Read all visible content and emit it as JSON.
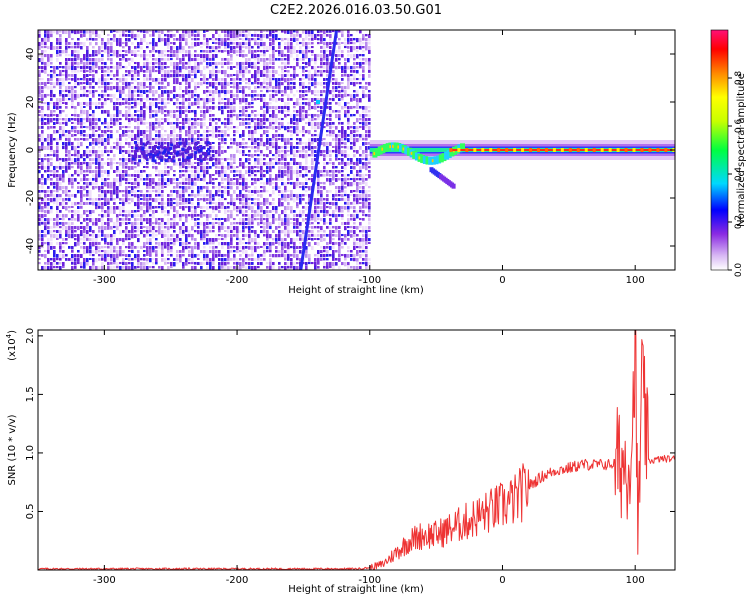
{
  "title": "C2E2.2026.016.03.50.G01",
  "colors": {
    "snr_line": "#ee3333",
    "axis": "#000000"
  },
  "chart_data": [
    {
      "type": "heatmap",
      "xlabel": "Height of straight line (km)",
      "ylabel": "Frequency (Hz)",
      "xlim": [
        -350,
        130
      ],
      "ylim": [
        -50,
        50
      ],
      "xticks": [
        -300,
        -200,
        -100,
        0,
        100
      ],
      "yticks": [
        -40,
        -20,
        0,
        20,
        40
      ],
      "grid": false,
      "colorbar": {
        "label": "Normalized spectral amplitude",
        "range": [
          0,
          1
        ],
        "ticks": [
          "0.0",
          "0.2",
          "0.4",
          "0.6",
          "0.8"
        ],
        "colormap": "rainbow (white-purple-blue-cyan-green-yellow-orange-red-magenta)"
      },
      "regions": [
        {
          "name": "noise",
          "x": [
            -350,
            -100
          ],
          "y": [
            -50,
            50
          ],
          "amplitude": 0.15
        },
        {
          "name": "signal-band",
          "x": [
            -100,
            130
          ],
          "y_center": 0,
          "amplitude": 0.95
        }
      ],
      "features": [
        {
          "name": "diagonal-streak",
          "x": [
            -152,
            -125
          ],
          "y": [
            -50,
            50
          ],
          "amplitude": 0.3
        },
        {
          "name": "low-freq-cluster",
          "x": [
            -280,
            -220
          ],
          "y": [
            -4,
            4
          ],
          "amplitude": 0.25
        },
        {
          "name": "negative-branch",
          "x": [
            -55,
            -38
          ],
          "y": [
            -8,
            -15
          ],
          "amplitude": 0.4
        }
      ]
    },
    {
      "type": "line",
      "xlabel": "Height of straight line (km)",
      "ylabel": "SNR (10 * v/v)",
      "scale_label": "(x10^4)",
      "scale_base": "(x10",
      "scale_exp": "4",
      "scale_close": ")",
      "xlim": [
        -350,
        130
      ],
      "ylim": [
        0,
        2.05
      ],
      "xticks": [
        -300,
        -200,
        -100,
        0,
        100
      ],
      "yticks": [
        "0.5",
        "1.0",
        "1.5",
        "2.0"
      ],
      "grid": false,
      "series": [
        {
          "x": [
            -350,
            -300,
            -250,
            -200,
            -150,
            -110,
            -100,
            -90,
            -80,
            -70,
            -60,
            -50,
            -40,
            -30,
            -20,
            -10,
            0,
            10,
            20,
            30,
            40,
            50,
            60,
            70,
            80,
            90,
            95,
            98,
            100,
            102,
            105,
            110,
            120,
            130
          ],
          "y": [
            0.01,
            0.01,
            0.01,
            0.01,
            0.01,
            0.01,
            0.02,
            0.05,
            0.15,
            0.25,
            0.3,
            0.3,
            0.35,
            0.4,
            0.45,
            0.5,
            0.55,
            0.6,
            0.72,
            0.8,
            0.85,
            0.87,
            0.9,
            0.9,
            0.9,
            0.92,
            0.93,
            1.2,
            2.0,
            0.2,
            1.6,
            0.93,
            0.95,
            0.95
          ]
        }
      ]
    }
  ]
}
